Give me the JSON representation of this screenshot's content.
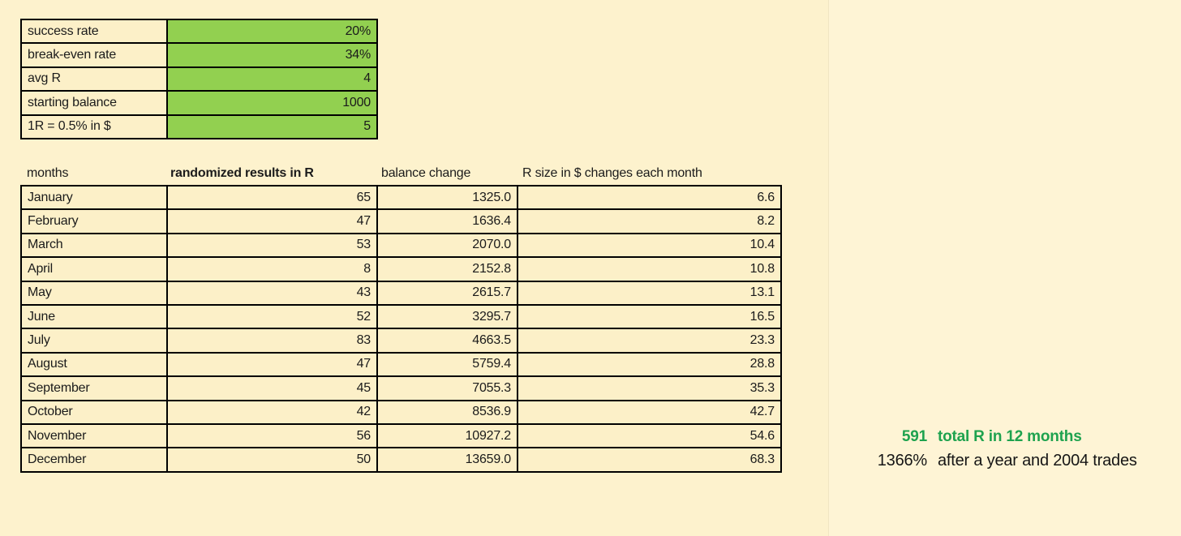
{
  "colors": {
    "background": "#fdf2cd",
    "background_right_pane": "#fef4d5",
    "cell_fill": "#fcf0c8",
    "value_cell_green": "#92d050",
    "accent_green": "#1ea24e",
    "border": "#000000"
  },
  "parameters_table": {
    "rows": [
      {
        "label": "success rate",
        "value": "20%"
      },
      {
        "label": "break-even rate",
        "value": "34%"
      },
      {
        "label": "avg R",
        "value": "4"
      },
      {
        "label": "starting balance",
        "value": "1000"
      },
      {
        "label": "1R = 0.5% in $",
        "value": "5"
      }
    ]
  },
  "results_table": {
    "headers": [
      "months",
      "randomized results in R",
      "balance change",
      "R size in $ changes each month"
    ],
    "rows": [
      [
        "January",
        "65",
        "1325.0",
        "6.6"
      ],
      [
        "February",
        "47",
        "1636.4",
        "8.2"
      ],
      [
        "March",
        "53",
        "2070.0",
        "10.4"
      ],
      [
        "April",
        "8",
        "2152.8",
        "10.8"
      ],
      [
        "May",
        "43",
        "2615.7",
        "13.1"
      ],
      [
        "June",
        "52",
        "3295.7",
        "16.5"
      ],
      [
        "July",
        "83",
        "4663.5",
        "23.3"
      ],
      [
        "August",
        "47",
        "5759.4",
        "28.8"
      ],
      [
        "September",
        "45",
        "7055.3",
        "35.3"
      ],
      [
        "October",
        "42",
        "8536.9",
        "42.7"
      ],
      [
        "November",
        "56",
        "10927.2",
        "54.6"
      ],
      [
        "December",
        "50",
        "13659.0",
        "68.3"
      ]
    ]
  },
  "summary": {
    "total_r_value": "591",
    "total_r_label": "total R in 12 months",
    "percent_value": "1366%",
    "percent_label": "after a year and 2004 trades"
  }
}
